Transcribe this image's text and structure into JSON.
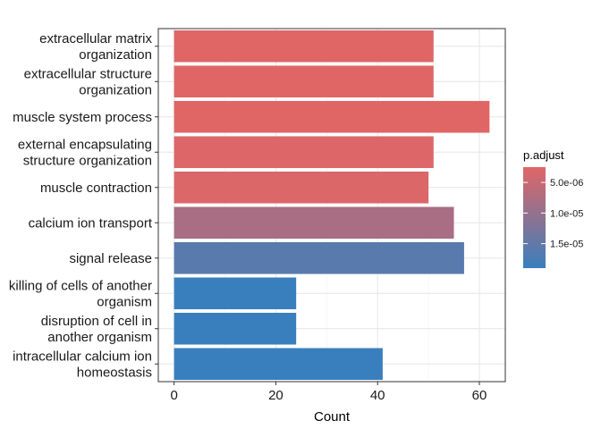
{
  "chart_data": {
    "type": "bar",
    "orientation": "horizontal",
    "xlabel": "Count",
    "ylabel": "",
    "xlim": [
      -3.1,
      65.1
    ],
    "xticks": [
      0,
      20,
      40,
      60
    ],
    "xtick_labels": [
      "0",
      "20",
      "40",
      "60"
    ],
    "grid": true,
    "categories": [
      [
        "extracellular matrix",
        "organization"
      ],
      [
        "extracellular structure",
        "organization"
      ],
      [
        "muscle system process"
      ],
      [
        "external encapsulating",
        "structure organization"
      ],
      [
        "muscle contraction"
      ],
      [
        "calcium ion transport"
      ],
      [
        "signal release"
      ],
      [
        "killing of cells of another",
        "organism"
      ],
      [
        "disruption of cell in",
        "another organism"
      ],
      [
        "intracellular calcium ion",
        "homeostasis"
      ]
    ],
    "values": [
      51,
      51,
      62,
      51,
      50,
      55,
      57,
      24,
      24,
      41
    ],
    "p_adjust": [
      2.5e-06,
      2.5e-06,
      2.5e-06,
      2.8e-06,
      3e-06,
      8e-06,
      1.6e-05,
      1.9e-05,
      1.9e-05,
      1.9e-05
    ],
    "legend": {
      "title": "p.adjust",
      "position": "right",
      "range": [
        2.5e-06,
        1.9e-05
      ],
      "ticks": [
        5e-06,
        1e-05,
        1.5e-05
      ],
      "tick_labels": [
        "5.0e-06",
        "1.0e-05",
        "1.5e-05"
      ],
      "color_low_value": "#e06666",
      "color_high_value": "#3a7fbd"
    }
  }
}
